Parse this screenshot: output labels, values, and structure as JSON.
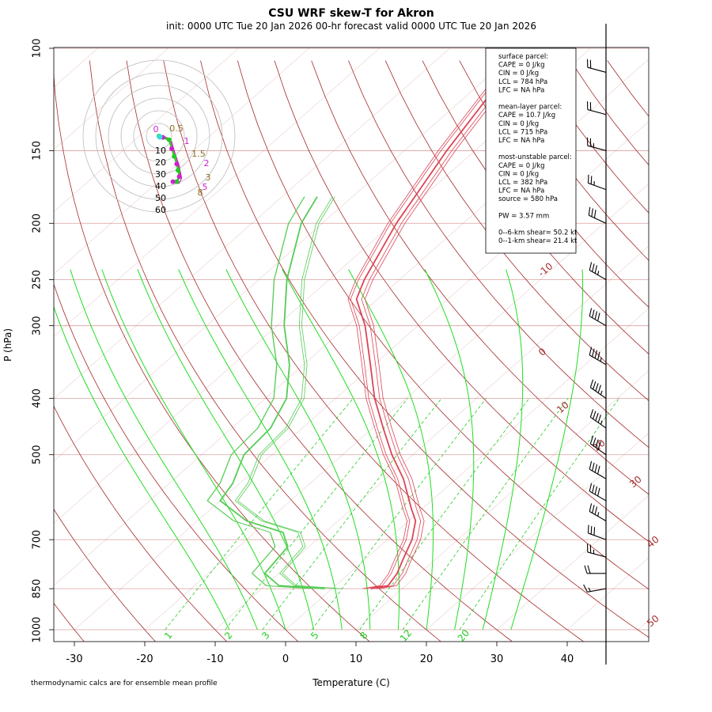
{
  "title": "CSU WRF skew-T for Akron",
  "subtitle": "init: 0000 UTC Tue 20 Jan 2026     00-hr forecast valid 0000 UTC Tue 20 Jan 2026",
  "footnote": "thermodynamic calcs are for ensemble mean profile",
  "info_box": [
    "surface parcel:",
    "CAPE = 0 J/kg",
    "CIN = 0 J/kg",
    "LCL = 784 hPa",
    "LFC = NA hPa",
    "",
    "mean-layer parcel:",
    "CAPE = 10.7 J/kg",
    "CIN = 0 J/kg",
    "LCL = 715 hPa",
    "LFC = NA hPa",
    "",
    "most-unstable parcel:",
    "CAPE = 0 J/kg",
    "CIN = 0 J/kg",
    "LCL = 382 hPa",
    "LFC = NA hPa",
    "source = 580 hPa",
    "",
    "PW =  3.57 mm",
    "",
    "0--6-km shear= 50.2 kt",
    "0--1-km shear= 21.4 kt"
  ],
  "colors": {
    "isotherm": "#a52a2a",
    "dry_adiabat": "#a52a2a",
    "moist_adiabat": "#22dd22",
    "mixing_ratio": "#22cc22",
    "isobar": "#d9a0a0",
    "temperature": "#dd4455",
    "dewpoint": "#55cc55",
    "hodo_ring": "#bbbbbb",
    "hodo_green": "#22cc22",
    "hodo_magenta": "#cc22cc",
    "hodo_brown": "#8b6b23",
    "hodo_cyan": "#33dddd",
    "barb": "#000000"
  },
  "chart_data": {
    "type": "skew-T log-p",
    "title": "CSU WRF skew-T for Akron",
    "xlabel": "Temperature (C)",
    "ylabel": "P (hPa)",
    "x_ticks": [
      -30,
      -20,
      -10,
      0,
      10,
      20,
      30,
      40
    ],
    "y_ticks": [
      100,
      150,
      200,
      250,
      300,
      400,
      500,
      700,
      850,
      1000
    ],
    "x_range": [
      -33,
      51
    ],
    "y_range": [
      1000,
      100
    ],
    "isotherm_labels": [
      -10,
      0,
      10,
      20,
      30,
      40,
      50
    ],
    "mixing_ratio_labels": [
      "1",
      "2",
      "3",
      "5",
      "8",
      "12",
      "20"
    ],
    "temperature_profile": [
      {
        "p": 850,
        "t": 5.5
      },
      {
        "p": 840,
        "t": 7.5
      },
      {
        "p": 800,
        "t": 6.8
      },
      {
        "p": 760,
        "t": 5.5
      },
      {
        "p": 700,
        "t": 3.5
      },
      {
        "p": 650,
        "t": 1.0
      },
      {
        "p": 620,
        "t": -1.5
      },
      {
        "p": 550,
        "t": -7.5
      },
      {
        "p": 500,
        "t": -13.0
      },
      {
        "p": 450,
        "t": -18.5
      },
      {
        "p": 400,
        "t": -24.5
      },
      {
        "p": 350,
        "t": -30.5
      },
      {
        "p": 300,
        "t": -37.5
      },
      {
        "p": 270,
        "t": -43.0
      },
      {
        "p": 250,
        "t": -45.0
      },
      {
        "p": 200,
        "t": -49.5
      },
      {
        "p": 150,
        "t": -54.0
      },
      {
        "p": 110,
        "t": -58.0
      }
    ],
    "dewpoint_profile": [
      {
        "p": 850,
        "t": -1.0
      },
      {
        "p": 840,
        "t": -8.0
      },
      {
        "p": 800,
        "t": -12.0
      },
      {
        "p": 720,
        "t": -13.0
      },
      {
        "p": 680,
        "t": -16.0
      },
      {
        "p": 650,
        "t": -23.0
      },
      {
        "p": 600,
        "t": -30.0
      },
      {
        "p": 560,
        "t": -31.0
      },
      {
        "p": 500,
        "t": -34.0
      },
      {
        "p": 450,
        "t": -34.5
      },
      {
        "p": 400,
        "t": -37.0
      },
      {
        "p": 350,
        "t": -42.0
      },
      {
        "p": 300,
        "t": -49.0
      },
      {
        "p": 250,
        "t": -56.0
      },
      {
        "p": 200,
        "t": -63.0
      },
      {
        "p": 180,
        "t": -65.0
      }
    ],
    "wind_profile": [
      {
        "p": 850,
        "speed_kt": 15,
        "dir_deg": 260
      },
      {
        "p": 800,
        "speed_kt": 20,
        "dir_deg": 270
      },
      {
        "p": 750,
        "speed_kt": 25,
        "dir_deg": 285
      },
      {
        "p": 700,
        "speed_kt": 30,
        "dir_deg": 290
      },
      {
        "p": 650,
        "speed_kt": 35,
        "dir_deg": 300
      },
      {
        "p": 600,
        "speed_kt": 40,
        "dir_deg": 300
      },
      {
        "p": 550,
        "speed_kt": 40,
        "dir_deg": 300
      },
      {
        "p": 500,
        "speed_kt": 40,
        "dir_deg": 305
      },
      {
        "p": 450,
        "speed_kt": 45,
        "dir_deg": 305
      },
      {
        "p": 400,
        "speed_kt": 45,
        "dir_deg": 305
      },
      {
        "p": 350,
        "speed_kt": 45,
        "dir_deg": 300
      },
      {
        "p": 300,
        "speed_kt": 40,
        "dir_deg": 300
      },
      {
        "p": 250,
        "speed_kt": 35,
        "dir_deg": 300
      },
      {
        "p": 200,
        "speed_kt": 30,
        "dir_deg": 295
      },
      {
        "p": 175,
        "speed_kt": 25,
        "dir_deg": 290
      },
      {
        "p": 150,
        "speed_kt": 25,
        "dir_deg": 285
      },
      {
        "p": 130,
        "speed_kt": 20,
        "dir_deg": 285
      },
      {
        "p": 110,
        "speed_kt": 20,
        "dir_deg": 285
      }
    ],
    "hodograph": {
      "ring_labels": [
        "10",
        "20",
        "30",
        "40",
        "50",
        "60"
      ],
      "point_labels": [
        "0",
        "0.5",
        "1",
        "1.5",
        "2",
        "3",
        "5",
        "8"
      ],
      "track": [
        {
          "u": 0,
          "v": 0
        },
        {
          "u": 3,
          "v": -1
        },
        {
          "u": 8,
          "v": -3
        },
        {
          "u": 10,
          "v": -10
        },
        {
          "u": 12,
          "v": -16
        },
        {
          "u": 14,
          "v": -22
        },
        {
          "u": 15,
          "v": -27
        },
        {
          "u": 16,
          "v": -32
        },
        {
          "u": 14,
          "v": -36
        },
        {
          "u": 11,
          "v": -36
        }
      ]
    }
  }
}
